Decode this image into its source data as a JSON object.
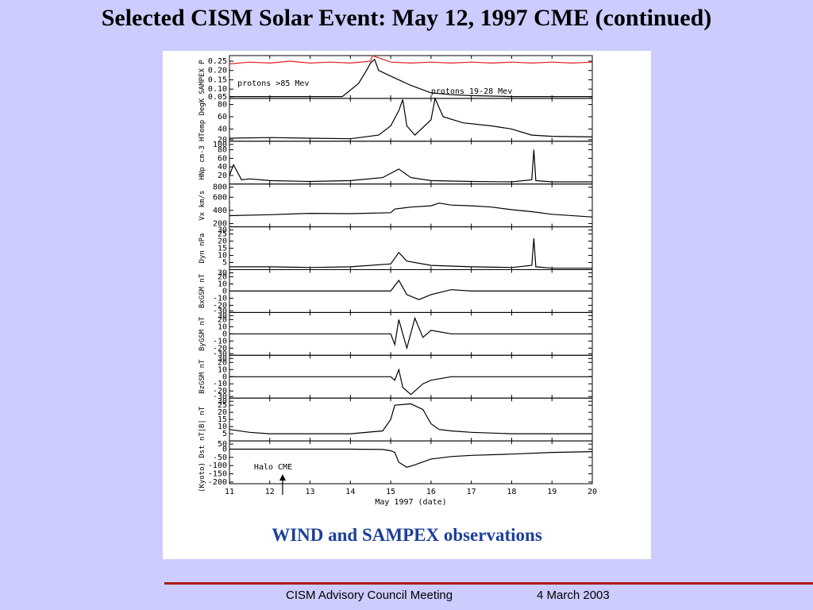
{
  "slide": {
    "title": "Selected CISM Solar Event: May 12, 1997 CME (continued)",
    "caption": "WIND and SAMPEX observations",
    "footer_left": "CISM Advisory Council Meeting",
    "footer_right": "4 March 2003"
  },
  "colors": {
    "background": "#ccccff",
    "caption": "#1d3f9a",
    "footer_rule": "#b01818",
    "sampex_high": "#e02020",
    "trace": "#000000"
  },
  "chart_data": {
    "type": "line",
    "xlabel": "May 1997 (date)",
    "xlim": [
      11,
      20
    ],
    "xticks": [
      11,
      12,
      13,
      14,
      15,
      16,
      17,
      18,
      19,
      20
    ],
    "annotation": {
      "text": "Halo CME",
      "x": 12.2
    },
    "panels": [
      {
        "id": "sampex",
        "ylabel": "SAMPEX P",
        "ylim": [
          0.05,
          0.28
        ],
        "yticks": [
          "0.25",
          "0.20",
          "0.15",
          "0.10",
          "0.05"
        ],
        "series": [
          {
            "name": "protons >85 Mev",
            "color": "#e02020",
            "points": [
              [
                11,
                0.235
              ],
              [
                11.5,
                0.245
              ],
              [
                12,
                0.24
              ],
              [
                12.5,
                0.25
              ],
              [
                13,
                0.24
              ],
              [
                13.5,
                0.245
              ],
              [
                14,
                0.24
              ],
              [
                14.5,
                0.25
              ],
              [
                14.55,
                0.28
              ],
              [
                15,
                0.245
              ],
              [
                15.5,
                0.24
              ],
              [
                16,
                0.245
              ],
              [
                16.5,
                0.24
              ],
              [
                17,
                0.245
              ],
              [
                17.5,
                0.24
              ],
              [
                18,
                0.245
              ],
              [
                18.5,
                0.24
              ],
              [
                19,
                0.245
              ],
              [
                19.5,
                0.24
              ],
              [
                20,
                0.245
              ]
            ]
          },
          {
            "name": "protons 19-28 Mev",
            "color": "#000000",
            "points": [
              [
                11,
                0.06
              ],
              [
                12,
                0.06
              ],
              [
                13,
                0.06
              ],
              [
                13.8,
                0.06
              ],
              [
                14.2,
                0.13
              ],
              [
                14.4,
                0.2
              ],
              [
                14.5,
                0.24
              ],
              [
                14.6,
                0.26
              ],
              [
                14.7,
                0.2
              ],
              [
                15,
                0.17
              ],
              [
                15.5,
                0.12
              ],
              [
                16,
                0.08
              ],
              [
                16.5,
                0.07
              ],
              [
                17,
                0.065
              ],
              [
                18,
                0.06
              ],
              [
                19,
                0.06
              ],
              [
                20,
                0.06
              ]
            ]
          }
        ]
      },
      {
        "id": "htemp",
        "ylabel": "HTemp DegK",
        "ylim": [
          20,
          90
        ],
        "yticks": [
          "80",
          "60",
          "40",
          "20"
        ],
        "series": [
          {
            "name": "",
            "color": "#000000",
            "points": [
              [
                11,
                25
              ],
              [
                12,
                26
              ],
              [
                13,
                25
              ],
              [
                14,
                24
              ],
              [
                14.7,
                30
              ],
              [
                15,
                45
              ],
              [
                15.2,
                70
              ],
              [
                15.3,
                88
              ],
              [
                15.4,
                45
              ],
              [
                15.6,
                30
              ],
              [
                16,
                55
              ],
              [
                16.1,
                90
              ],
              [
                16.3,
                60
              ],
              [
                16.8,
                50
              ],
              [
                17.5,
                45
              ],
              [
                18,
                40
              ],
              [
                18.5,
                30
              ],
              [
                19,
                28
              ],
              [
                20,
                27
              ]
            ]
          }
        ]
      },
      {
        "id": "hnp",
        "ylabel": "HNp cm-3",
        "ylim": [
          0,
          100
        ],
        "yticks": [
          "100",
          "80",
          "60",
          "40",
          "20"
        ],
        "series": [
          {
            "name": "",
            "color": "#000000",
            "points": [
              [
                11,
                20
              ],
              [
                11.1,
                45
              ],
              [
                11.3,
                10
              ],
              [
                11.5,
                12
              ],
              [
                12,
                8
              ],
              [
                13,
                6
              ],
              [
                14,
                8
              ],
              [
                14.8,
                15
              ],
              [
                15.2,
                35
              ],
              [
                15.5,
                15
              ],
              [
                16,
                8
              ],
              [
                17,
                6
              ],
              [
                18,
                5
              ],
              [
                18.5,
                10
              ],
              [
                18.55,
                80
              ],
              [
                18.6,
                8
              ],
              [
                19,
                5
              ],
              [
                20,
                5
              ]
            ]
          }
        ]
      },
      {
        "id": "vx",
        "ylabel": "Vx km/s",
        "ylim": [
          150,
          800
        ],
        "yticks": [
          "800",
          "600",
          "400",
          "200"
        ],
        "series": [
          {
            "name": "",
            "color": "#000000",
            "points": [
              [
                11,
                320
              ],
              [
                12,
                335
              ],
              [
                13,
                355
              ],
              [
                14,
                350
              ],
              [
                15,
                365
              ],
              [
                15.1,
                420
              ],
              [
                15.5,
                450
              ],
              [
                16,
                470
              ],
              [
                16.2,
                510
              ],
              [
                16.5,
                480
              ],
              [
                17,
                470
              ],
              [
                17.5,
                450
              ],
              [
                18,
                410
              ],
              [
                18.5,
                380
              ],
              [
                19,
                340
              ],
              [
                20,
                300
              ]
            ]
          }
        ]
      },
      {
        "id": "dyn",
        "ylabel": "Dyn nPa",
        "ylim": [
          0,
          30
        ],
        "yticks": [
          "30",
          "25",
          "20",
          "15",
          "10",
          "5"
        ],
        "series": [
          {
            "name": "",
            "color": "#000000",
            "points": [
              [
                11,
                2
              ],
              [
                12,
                2
              ],
              [
                13,
                1.5
              ],
              [
                14,
                2
              ],
              [
                15,
                4
              ],
              [
                15.2,
                12
              ],
              [
                15.4,
                6
              ],
              [
                16,
                3
              ],
              [
                17,
                2
              ],
              [
                18,
                1.5
              ],
              [
                18.5,
                3
              ],
              [
                18.55,
                22
              ],
              [
                18.6,
                2
              ],
              [
                19,
                1
              ],
              [
                20,
                1
              ]
            ]
          }
        ]
      },
      {
        "id": "bx",
        "ylabel": "BxGSM nT",
        "ylim": [
          -30,
          30
        ],
        "yticks": [
          "30",
          "20",
          "10",
          "0",
          "-10",
          "-20",
          "-30"
        ],
        "series": [
          {
            "name": "",
            "color": "#000000",
            "points": [
              [
                11,
                0
              ],
              [
                12,
                0
              ],
              [
                13,
                0
              ],
              [
                14,
                0
              ],
              [
                15,
                0
              ],
              [
                15.2,
                15
              ],
              [
                15.4,
                -5
              ],
              [
                15.7,
                -12
              ],
              [
                16,
                -5
              ],
              [
                16.5,
                2
              ],
              [
                17,
                0
              ],
              [
                18,
                0
              ],
              [
                19,
                0
              ],
              [
                20,
                0
              ]
            ]
          }
        ]
      },
      {
        "id": "by",
        "ylabel": "ByGSM nT",
        "ylim": [
          -30,
          30
        ],
        "yticks": [
          "30",
          "20",
          "10",
          "0",
          "-10",
          "-20",
          "-30"
        ],
        "series": [
          {
            "name": "",
            "color": "#000000",
            "points": [
              [
                11,
                0
              ],
              [
                12,
                0
              ],
              [
                13,
                0
              ],
              [
                14,
                0
              ],
              [
                15,
                0
              ],
              [
                15.1,
                -15
              ],
              [
                15.2,
                20
              ],
              [
                15.4,
                -20
              ],
              [
                15.6,
                22
              ],
              [
                15.8,
                -5
              ],
              [
                16,
                5
              ],
              [
                16.5,
                0
              ],
              [
                17,
                0
              ],
              [
                18,
                0
              ],
              [
                19,
                0
              ],
              [
                20,
                0
              ]
            ]
          }
        ]
      },
      {
        "id": "bz",
        "ylabel": "BzGSM nT",
        "ylim": [
          -30,
          30
        ],
        "yticks": [
          "30",
          "20",
          "10",
          "0",
          "-10",
          "-20",
          "-30"
        ],
        "series": [
          {
            "name": "",
            "color": "#000000",
            "points": [
              [
                11,
                0
              ],
              [
                12,
                0
              ],
              [
                13,
                0
              ],
              [
                14,
                0
              ],
              [
                15,
                0
              ],
              [
                15.1,
                -5
              ],
              [
                15.2,
                10
              ],
              [
                15.3,
                -15
              ],
              [
                15.5,
                -25
              ],
              [
                15.8,
                -10
              ],
              [
                16,
                -5
              ],
              [
                16.5,
                0
              ],
              [
                17,
                0
              ],
              [
                18,
                0
              ],
              [
                19,
                0
              ],
              [
                20,
                0
              ]
            ]
          }
        ]
      },
      {
        "id": "bt",
        "ylabel": "|B| nT",
        "ylim": [
          0,
          30
        ],
        "yticks": [
          "30",
          "25",
          "20",
          "15",
          "10",
          "5"
        ],
        "series": [
          {
            "name": "",
            "color": "#000000",
            "points": [
              [
                11,
                8
              ],
              [
                11.5,
                6
              ],
              [
                12,
                5
              ],
              [
                13,
                5
              ],
              [
                14,
                5
              ],
              [
                14.8,
                7
              ],
              [
                15,
                15
              ],
              [
                15.1,
                25
              ],
              [
                15.5,
                26
              ],
              [
                15.8,
                22
              ],
              [
                16,
                12
              ],
              [
                16.2,
                8
              ],
              [
                16.5,
                7
              ],
              [
                17,
                6
              ],
              [
                18,
                5
              ],
              [
                19,
                5
              ],
              [
                20,
                5
              ]
            ]
          }
        ]
      },
      {
        "id": "dst",
        "ylabel": "(Kyoto) Dst nT",
        "ylim": [
          -210,
          50
        ],
        "yticks": [
          "50",
          "0",
          "-50",
          "-100",
          "-150",
          "-200"
        ],
        "series": [
          {
            "name": "",
            "color": "#000000",
            "points": [
              [
                11,
                0
              ],
              [
                12,
                0
              ],
              [
                13,
                0
              ],
              [
                14,
                0
              ],
              [
                14.8,
                -2
              ],
              [
                15,
                -10
              ],
              [
                15.1,
                -20
              ],
              [
                15.2,
                -80
              ],
              [
                15.4,
                -110
              ],
              [
                15.6,
                -95
              ],
              [
                16,
                -60
              ],
              [
                16.5,
                -45
              ],
              [
                17,
                -38
              ],
              [
                18,
                -30
              ],
              [
                19,
                -20
              ],
              [
                20,
                -15
              ]
            ]
          }
        ]
      }
    ]
  }
}
